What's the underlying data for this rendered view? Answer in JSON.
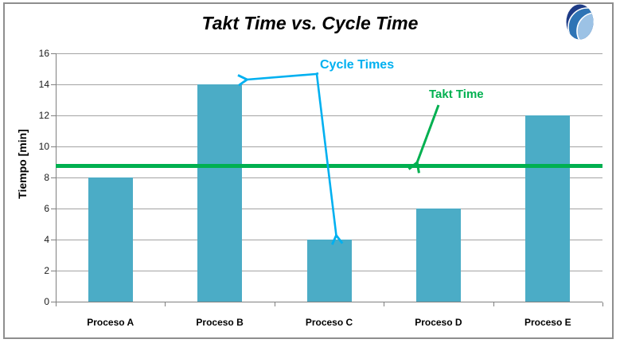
{
  "chart_data": {
    "type": "bar",
    "title": "Takt Time vs. Cycle Time",
    "categories": [
      "Proceso A",
      "Proceso B",
      "Proceso C",
      "Proceso D",
      "Proceso E"
    ],
    "values": [
      8,
      14,
      4,
      6,
      12
    ],
    "xlabel": "",
    "ylabel": "Tiempo [min]",
    "ylim": [
      0,
      16
    ],
    "yticks": [
      0,
      2,
      4,
      6,
      8,
      10,
      12,
      14,
      16
    ],
    "grid": true,
    "legend_position": "none",
    "bar_color": "#4BACC6",
    "takt_line": {
      "label": "Takt Time",
      "value": 8.75,
      "color": "#00B050"
    },
    "annotations": {
      "cycle_times": {
        "text": "Cycle Times",
        "color": "#00B0F0",
        "points_to": [
          "Proceso B",
          "Proceso C"
        ]
      },
      "takt_time": {
        "text": "Takt Time",
        "color": "#00B050",
        "points_to": "takt_line"
      }
    }
  },
  "colors": {
    "gridline": "#A3A3A3",
    "axis": "#808080",
    "frame_border": "#8E8E8E",
    "tick_label": "#1a1a1a",
    "annotation_blue": "#00B0F0",
    "annotation_green": "#00B050"
  },
  "logo": {
    "icon": "sphere-swoosh-logo",
    "colors": [
      "#1E3C87",
      "#2E74B5",
      "#9CC2E5"
    ]
  }
}
